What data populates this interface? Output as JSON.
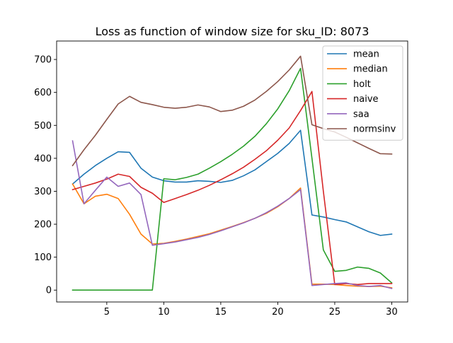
{
  "chart_data": {
    "type": "line",
    "title": "Loss as function of window size for sku_ID: 8073",
    "xlabel": "",
    "ylabel": "",
    "xlim": [
      0.6,
      31.4
    ],
    "ylim": [
      -36,
      756
    ],
    "xticks": [
      5,
      10,
      15,
      20,
      25,
      30
    ],
    "yticks": [
      0,
      100,
      200,
      300,
      400,
      500,
      600,
      700
    ],
    "grid": false,
    "legend_position": "top-right",
    "x": [
      2,
      3,
      4,
      5,
      6,
      7,
      8,
      9,
      10,
      11,
      12,
      13,
      14,
      15,
      16,
      17,
      18,
      19,
      20,
      21,
      22,
      23,
      24,
      25,
      26,
      27,
      28,
      29,
      30
    ],
    "series": [
      {
        "name": "mean",
        "color": "#1f77b4",
        "values": [
          322,
          352,
          378,
          400,
          420,
          418,
          370,
          343,
          332,
          328,
          328,
          332,
          330,
          327,
          333,
          347,
          365,
          390,
          415,
          445,
          485,
          228,
          222,
          214,
          207,
          192,
          177,
          166,
          170
        ]
      },
      {
        "name": "median",
        "color": "#ff7f0e",
        "values": [
          322,
          262,
          285,
          291,
          278,
          230,
          170,
          140,
          142,
          148,
          155,
          163,
          171,
          182,
          193,
          205,
          218,
          233,
          253,
          278,
          310,
          18,
          18,
          17,
          14,
          12,
          11,
          12,
          7
        ]
      },
      {
        "name": "holt",
        "color": "#2ca02c",
        "values": [
          0,
          0,
          0,
          0,
          0,
          0,
          0,
          0,
          338,
          335,
          342,
          352,
          370,
          390,
          412,
          437,
          467,
          505,
          550,
          605,
          673,
          400,
          122,
          57,
          60,
          70,
          66,
          52,
          22
        ]
      },
      {
        "name": "naive",
        "color": "#d62728",
        "values": [
          305,
          315,
          325,
          337,
          352,
          345,
          312,
          294,
          266,
          278,
          290,
          303,
          318,
          335,
          353,
          373,
          397,
          423,
          455,
          492,
          545,
          603,
          300,
          17,
          20,
          17,
          20,
          20,
          20
        ]
      },
      {
        "name": "saa",
        "color": "#9467bd",
        "values": [
          453,
          262,
          303,
          343,
          315,
          325,
          290,
          136,
          141,
          146,
          153,
          160,
          169,
          180,
          192,
          204,
          218,
          235,
          255,
          278,
          305,
          14,
          17,
          20,
          22,
          14,
          11,
          14,
          5
        ]
      },
      {
        "name": "normsinv",
        "color": "#8c564b",
        "values": [
          378,
          426,
          470,
          518,
          565,
          588,
          570,
          563,
          555,
          552,
          555,
          562,
          556,
          542,
          546,
          558,
          577,
          603,
          633,
          668,
          710,
          502,
          490,
          480,
          464,
          447,
          430,
          414,
          413
        ]
      }
    ]
  }
}
